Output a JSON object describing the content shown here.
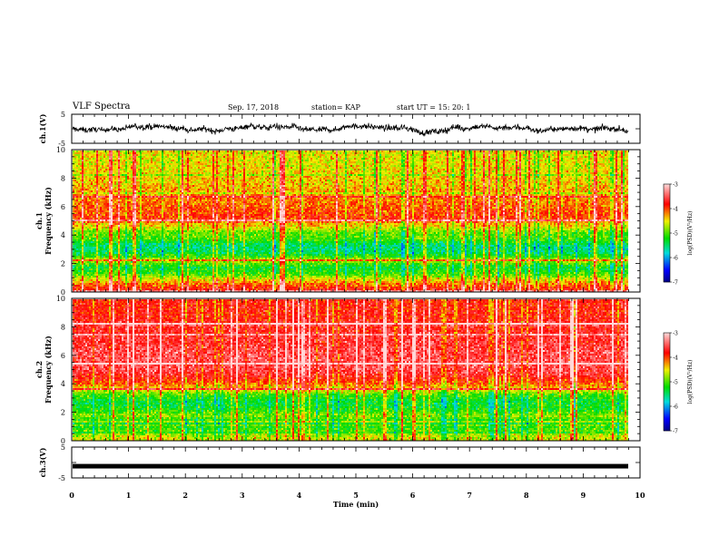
{
  "header": {
    "title": "VLF Spectra",
    "date": "Sep. 17, 2018",
    "station": "station= KAP",
    "start": "start UT = 15: 20: 1"
  },
  "chart_data": [
    {
      "type": "line",
      "panel": "ch1-waveform",
      "ylabel": "ch.1(V)",
      "ylim": [
        -5,
        5
      ],
      "yticks": [
        "5",
        "-5"
      ],
      "x_range_min": [
        0,
        9.83
      ],
      "approx_mean": 0,
      "approx_amplitude": 2.5
    },
    {
      "type": "heatmap",
      "panel": "ch1-spectrogram",
      "ylabel": "ch.1\nFrequency (kHz)",
      "ylim": [
        0,
        10
      ],
      "yticks": [
        "0",
        "2",
        "4",
        "6",
        "8",
        "10"
      ],
      "x_range_min": [
        0,
        9.83
      ],
      "colorbar": {
        "label": "log(PSD)(V²/Hz)",
        "range": [
          -7,
          -3
        ],
        "ticks": [
          "-3",
          "-4",
          "-5",
          "-6",
          "-7"
        ]
      },
      "freq_profile_kHz": [
        0.25,
        0.75,
        1.25,
        1.75,
        2.25,
        2.75,
        3.25,
        3.75,
        4.25,
        4.75,
        5.25,
        5.75,
        6.25,
        6.75,
        7.25,
        7.75,
        8.25,
        8.75,
        9.25,
        9.75
      ],
      "log_psd_profile": [
        -3.8,
        -4.3,
        -5.0,
        -5.3,
        -4.6,
        -5.4,
        -5.5,
        -5.0,
        -4.9,
        -4.3,
        -3.9,
        -4.0,
        -4.1,
        -4.2,
        -4.3,
        -4.4,
        -4.4,
        -4.5,
        -4.5,
        -4.5
      ]
    },
    {
      "type": "heatmap",
      "panel": "ch2-spectrogram",
      "ylabel": "ch.2\nFrequency (kHz)",
      "ylim": [
        0,
        10
      ],
      "yticks": [
        "0",
        "2",
        "4",
        "6",
        "8",
        "10"
      ],
      "x_range_min": [
        0,
        9.83
      ],
      "colorbar": {
        "label": "log(PSD)(V²/Hz)",
        "range": [
          -7,
          -3
        ],
        "ticks": [
          "-3",
          "-4",
          "-5",
          "-6",
          "-7"
        ]
      },
      "freq_profile_kHz": [
        0.25,
        0.75,
        1.25,
        1.75,
        2.25,
        2.75,
        3.25,
        3.75,
        4.25,
        4.75,
        5.25,
        5.75,
        6.25,
        6.75,
        7.25,
        7.75,
        8.25,
        8.75,
        9.25,
        9.75
      ],
      "log_psd_profile": [
        -4.6,
        -5.0,
        -5.3,
        -4.8,
        -5.2,
        -5.3,
        -5.0,
        -4.3,
        -3.9,
        -3.6,
        -3.5,
        -3.5,
        -3.5,
        -3.6,
        -3.6,
        -3.7,
        -3.7,
        -3.8,
        -3.8,
        -3.8
      ]
    },
    {
      "type": "line",
      "panel": "ch3-waveform",
      "ylabel": "ch.3(V)",
      "ylim": [
        -5,
        5
      ],
      "yticks": [
        "5",
        "-5"
      ],
      "x_range_min": [
        0,
        9.83
      ],
      "approx_mean": -1.2,
      "approx_amplitude": 0.1
    }
  ],
  "x_axis": {
    "label": "Time (min)",
    "range": [
      0,
      10
    ],
    "ticks": [
      "0",
      "1",
      "2",
      "3",
      "4",
      "5",
      "6",
      "7",
      "8",
      "9",
      "10"
    ]
  },
  "colors": {
    "colormap": [
      "#000080",
      "#0000ff",
      "#00e0e0",
      "#00e000",
      "#f0f000",
      "#ff0000",
      "#ffd0d0"
    ],
    "line": "#000000"
  }
}
